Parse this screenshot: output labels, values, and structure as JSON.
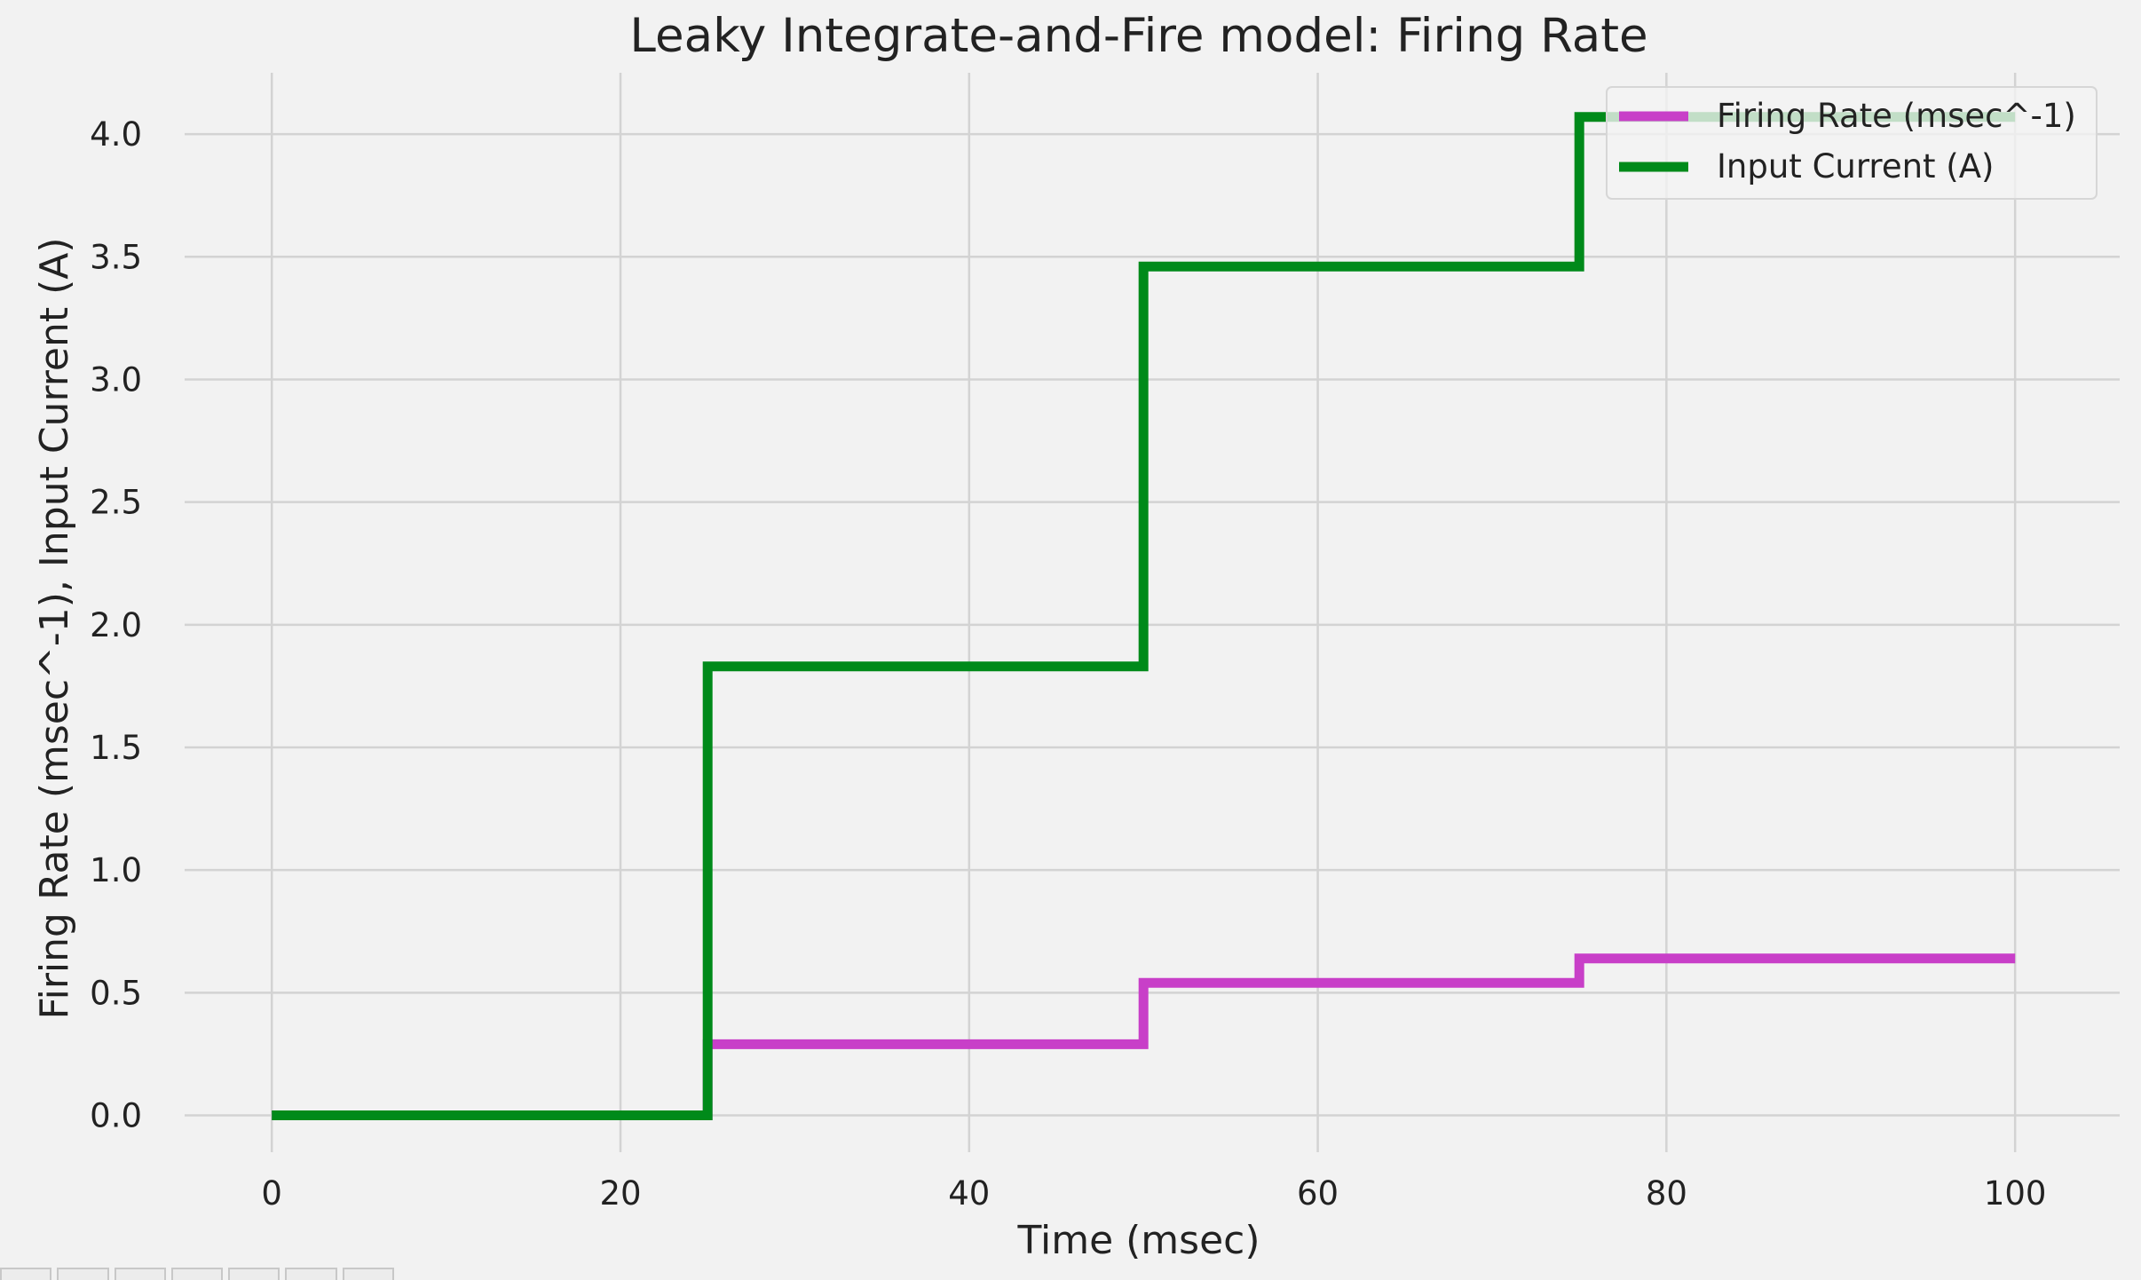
{
  "chart_data": {
    "type": "line",
    "title": "Leaky Integrate-and-Fire model: Firing Rate",
    "xlabel": "Time (msec)",
    "ylabel": "Firing Rate (msec^-1), Input Current (A)",
    "xlim": [
      -5,
      106
    ],
    "ylim": [
      -0.15,
      4.25
    ],
    "xticks": [
      0,
      20,
      40,
      60,
      80,
      100
    ],
    "xtick_labels": [
      "0",
      "20",
      "40",
      "60",
      "80",
      "100"
    ],
    "yticks": [
      0.0,
      0.5,
      1.0,
      1.5,
      2.0,
      2.5,
      3.0,
      3.5,
      4.0
    ],
    "ytick_labels": [
      "0.0",
      "0.5",
      "1.0",
      "1.5",
      "2.0",
      "2.5",
      "3.0",
      "3.5",
      "4.0"
    ],
    "grid": true,
    "legend_position": "top-right",
    "series": [
      {
        "name": "Firing Rate (msec^-1)",
        "color": "#c83fc8",
        "x": [
          0,
          25,
          25,
          50,
          50,
          75,
          75,
          100
        ],
        "y": [
          0,
          0,
          0.29,
          0.29,
          0.54,
          0.54,
          0.64,
          0.64
        ]
      },
      {
        "name": "Input Current (A)",
        "color": "#008a1a",
        "x": [
          0,
          25,
          25,
          50,
          50,
          75,
          75,
          100
        ],
        "y": [
          0,
          0,
          1.83,
          1.83,
          3.46,
          3.46,
          4.07,
          4.07
        ]
      }
    ]
  },
  "toolbar": {
    "buttons": [
      "home",
      "back",
      "forward",
      "pan",
      "zoom",
      "subplots",
      "save"
    ]
  }
}
